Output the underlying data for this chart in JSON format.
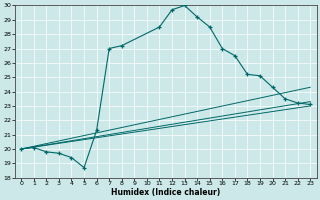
{
  "xlabel": "Humidex (Indice chaleur)",
  "xlim": [
    -0.5,
    23.5
  ],
  "ylim": [
    18,
    30
  ],
  "xticks": [
    0,
    1,
    2,
    3,
    4,
    5,
    6,
    7,
    8,
    9,
    10,
    11,
    12,
    13,
    14,
    15,
    16,
    17,
    18,
    19,
    20,
    21,
    22,
    23
  ],
  "yticks": [
    18,
    19,
    20,
    21,
    22,
    23,
    24,
    25,
    26,
    27,
    28,
    29,
    30
  ],
  "bg_color": "#cce8e8",
  "line_color": "#006868",
  "main_line": {
    "x": [
      0,
      1,
      2,
      3,
      4,
      5,
      6,
      7,
      8,
      11,
      12,
      13,
      14,
      15,
      16,
      17,
      18,
      19,
      20,
      21,
      22,
      23
    ],
    "y": [
      20.0,
      20.1,
      19.8,
      19.7,
      19.4,
      18.7,
      21.3,
      27.0,
      27.2,
      28.5,
      29.7,
      30.0,
      29.2,
      28.5,
      27.0,
      26.5,
      25.2,
      25.1,
      24.3,
      23.5,
      23.2,
      23.1
    ]
  },
  "straight_lines": [
    {
      "x": [
        0,
        23
      ],
      "y": [
        20.0,
        24.3
      ]
    },
    {
      "x": [
        0,
        23
      ],
      "y": [
        20.0,
        23.3
      ]
    },
    {
      "x": [
        0,
        23
      ],
      "y": [
        20.0,
        23.0
      ]
    }
  ]
}
